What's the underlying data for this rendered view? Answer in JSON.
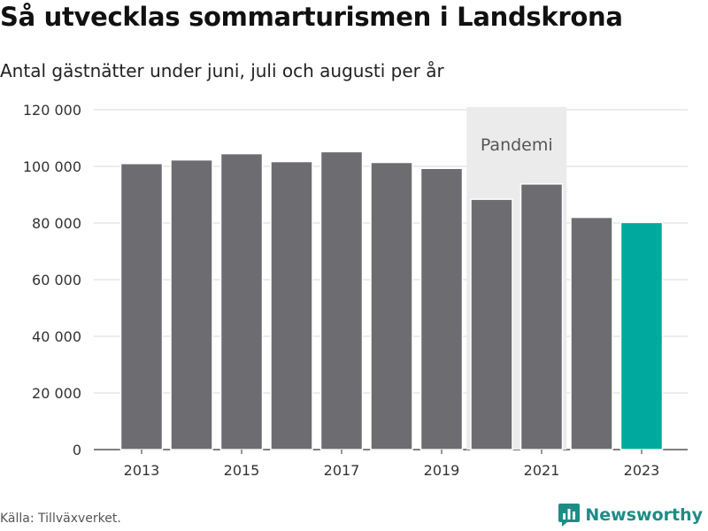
{
  "title": "Så utvecklas sommarturismen i Landskrona",
  "subtitle": "Antal gästnätter under juni, juli och augusti per år",
  "source": "Källa: Tillväxverket.",
  "brand": "Newsworthy",
  "chart_data": {
    "type": "bar",
    "categories": [
      "2013",
      "2014",
      "2015",
      "2016",
      "2017",
      "2018",
      "2019",
      "2020",
      "2021",
      "2022",
      "2023"
    ],
    "values": [
      101000,
      102300,
      104500,
      101700,
      105200,
      101400,
      99300,
      88400,
      93800,
      82000,
      80200
    ],
    "x_tick_labels": [
      "2013",
      "2015",
      "2017",
      "2019",
      "2021",
      "2023"
    ],
    "y_ticks": [
      0,
      20000,
      40000,
      60000,
      80000,
      100000,
      120000
    ],
    "y_tick_labels": [
      "0",
      "20 000",
      "40 000",
      "60 000",
      "80 000",
      "100 000",
      "120 000"
    ],
    "ylim": [
      0,
      120000
    ],
    "xlabel": "",
    "ylabel": "",
    "grid": true,
    "highlight": {
      "category": "2023",
      "color": "#00a99d"
    },
    "bar_color": "#6d6c70",
    "shaded_region": {
      "from": "2020",
      "to": "2021",
      "label": "Pandemi"
    }
  }
}
